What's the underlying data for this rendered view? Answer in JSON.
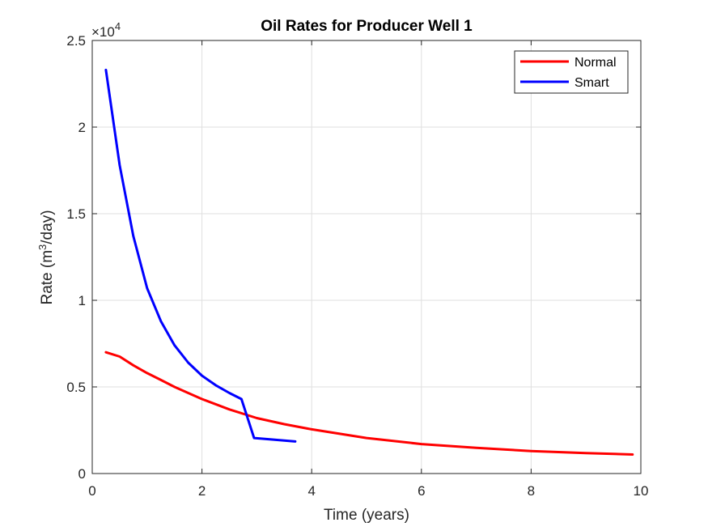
{
  "chart_data": {
    "type": "line",
    "title": "Oil Rates for Producer Well 1",
    "xlabel": "Time (years)",
    "ylabel_main": "Rate (m",
    "ylabel_sup": "3",
    "ylabel_tail": "/day)",
    "y_multiplier_base": "×10",
    "y_multiplier_exp": "4",
    "xlim": [
      0,
      10
    ],
    "ylim": [
      0,
      25000
    ],
    "x_ticks": [
      0,
      2,
      4,
      6,
      8,
      10
    ],
    "y_ticks": [
      0,
      5000,
      10000,
      15000,
      20000,
      25000
    ],
    "x_tick_labels": [
      "0",
      "2",
      "4",
      "6",
      "8",
      "10"
    ],
    "y_tick_labels": [
      "0",
      "0.5",
      "1",
      "1.5",
      "2",
      "2.5"
    ],
    "grid": true,
    "legend_position": "top-right",
    "series": [
      {
        "name": "Normal",
        "color": "#ff0000",
        "x": [
          0.25,
          0.5,
          0.75,
          1.0,
          1.25,
          1.5,
          1.75,
          2.0,
          2.5,
          3.0,
          3.5,
          4.0,
          5.0,
          6.0,
          7.0,
          8.0,
          9.0,
          9.85
        ],
        "y": [
          7000,
          6750,
          6250,
          5800,
          5400,
          5000,
          4650,
          4300,
          3700,
          3200,
          2850,
          2550,
          2050,
          1700,
          1480,
          1300,
          1180,
          1100
        ]
      },
      {
        "name": "Smart",
        "color": "#0000ff",
        "x": [
          0.25,
          0.5,
          0.75,
          1.0,
          1.25,
          1.5,
          1.75,
          2.0,
          2.25,
          2.5,
          2.72,
          2.95,
          3.7
        ],
        "y": [
          23300,
          17800,
          13700,
          10700,
          8800,
          7400,
          6400,
          5650,
          5100,
          4650,
          4300,
          2050,
          1850
        ]
      }
    ]
  }
}
